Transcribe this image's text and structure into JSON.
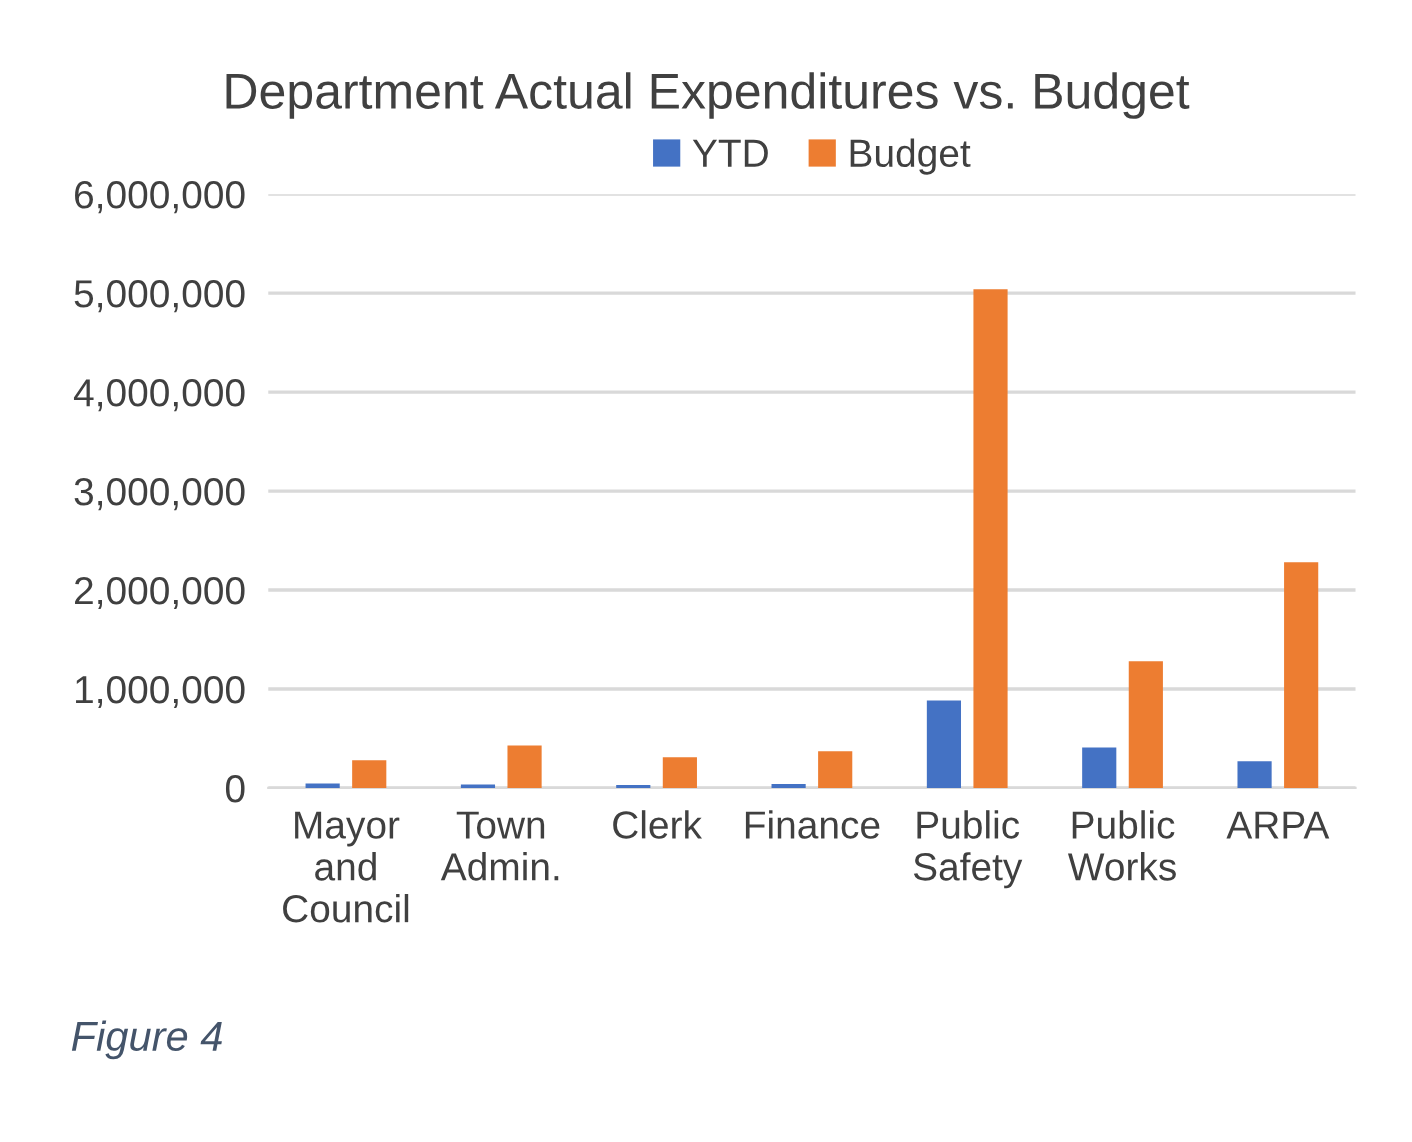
{
  "chart_data": {
    "type": "bar",
    "title": "Department Actual Expenditures vs. Budget",
    "categories": [
      "Mayor\nand\nCouncil",
      "Town\nAdmin.",
      "Clerk",
      "Finance",
      "Public\nSafety",
      "Public\nWorks",
      "ARPA"
    ],
    "series": [
      {
        "name": "YTD",
        "color": "#4472c4",
        "values": [
          45000,
          35000,
          30000,
          40000,
          885000,
          410000,
          270000
        ]
      },
      {
        "name": "Budget",
        "color": "#ed7d31",
        "values": [
          280000,
          430000,
          310000,
          370000,
          5040000,
          1280000,
          2280000
        ]
      }
    ],
    "ylim": [
      0,
      6000000
    ],
    "yticks": [
      {
        "value": 0,
        "label": "0"
      },
      {
        "value": 1000000,
        "label": "1,000,000"
      },
      {
        "value": 2000000,
        "label": "2,000,000"
      },
      {
        "value": 3000000,
        "label": "3,000,000"
      },
      {
        "value": 4000000,
        "label": "4,000,000"
      },
      {
        "value": 5000000,
        "label": "5,000,000"
      },
      {
        "value": 6000000,
        "label": "6,000,000"
      }
    ],
    "grid": "y",
    "legend": "top",
    "annotations": [
      "Figure 4"
    ]
  }
}
